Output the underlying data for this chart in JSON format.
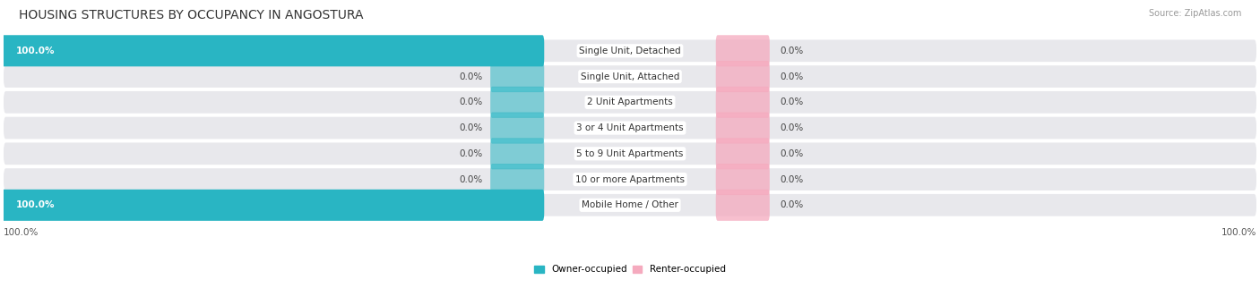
{
  "title": "HOUSING STRUCTURES BY OCCUPANCY IN ANGOSTURA",
  "source": "Source: ZipAtlas.com",
  "categories": [
    "Single Unit, Detached",
    "Single Unit, Attached",
    "2 Unit Apartments",
    "3 or 4 Unit Apartments",
    "5 to 9 Unit Apartments",
    "10 or more Apartments",
    "Mobile Home / Other"
  ],
  "owner_values": [
    100.0,
    0.0,
    0.0,
    0.0,
    0.0,
    0.0,
    100.0
  ],
  "renter_values": [
    0.0,
    0.0,
    0.0,
    0.0,
    0.0,
    0.0,
    0.0
  ],
  "owner_color": "#29B5C3",
  "renter_color": "#F5AABE",
  "row_bg_color": "#E8E8EC",
  "title_fontsize": 10,
  "label_fontsize": 7.5,
  "category_fontsize": 7.5,
  "source_fontsize": 7,
  "bottom_label": "100.0%",
  "legend_labels": [
    "Owner-occupied",
    "Renter-occupied"
  ]
}
